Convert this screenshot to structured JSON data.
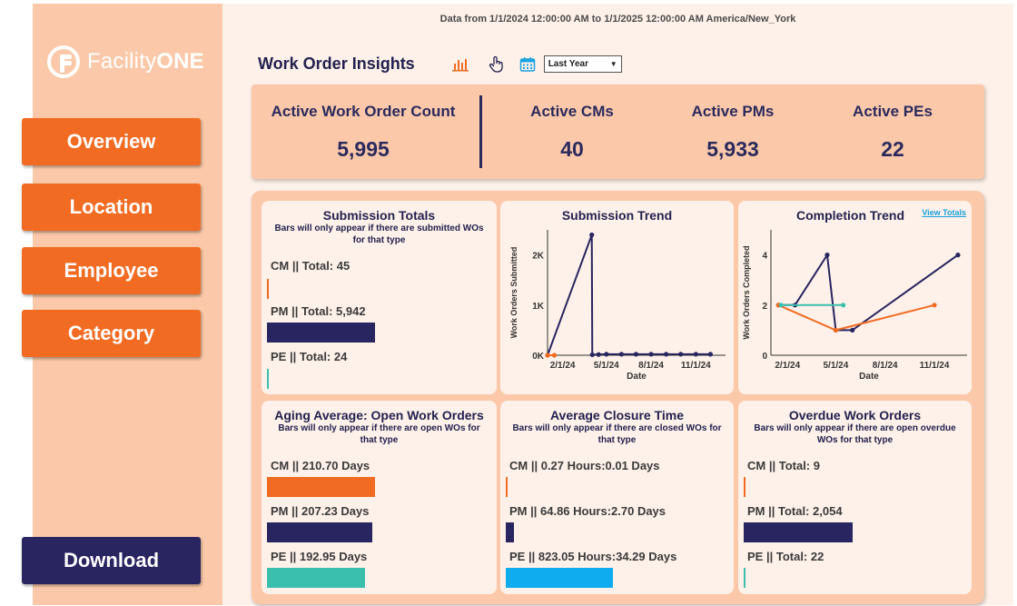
{
  "header": {
    "date_range": "Data from 1/1/2024 12:00:00 AM to 1/1/2025 12:00:00 AM America/New_York",
    "title": "Work Order Insights",
    "period_select": "Last Year"
  },
  "logo": {
    "light": "Facility",
    "bold": "ONE"
  },
  "sidebar": {
    "overview": "Overview",
    "location": "Location",
    "employee": "Employee",
    "category": "Category",
    "download": "Download"
  },
  "kpis": {
    "active_wo": {
      "label": "Active Work Order Count",
      "value": "5,995"
    },
    "active_cms": {
      "label": "Active CMs",
      "value": "40"
    },
    "active_pms": {
      "label": "Active PMs",
      "value": "5,933"
    },
    "active_pes": {
      "label": "Active PEs",
      "value": "22"
    }
  },
  "colors": {
    "cm": "#f26b22",
    "pm": "#282560",
    "pe_teal": "#3bbfad",
    "pe_blue": "#0fadf0",
    "sidebar": "#fbc9a9",
    "button": "#f26b22",
    "download": "#282560"
  },
  "tiles": {
    "submission_totals": {
      "title": "Submission Totals",
      "subtitle": "Bars will only appear if there are submitted WOs for that type",
      "rows": [
        {
          "label": "CM || Total: 45",
          "value": 45
        },
        {
          "label": "PM || Total: 5,942",
          "value": 5942
        },
        {
          "label": "PE || Total: 24",
          "value": 24
        }
      ]
    },
    "aging_average": {
      "title": "Aging Average: Open Work Orders",
      "subtitle": "Bars will only appear if there are open WOs for that type",
      "rows": [
        {
          "label": "CM || 210.70 Days",
          "value": 210.7
        },
        {
          "label": "PM || 207.23 Days",
          "value": 207.23
        },
        {
          "label": "PE || 192.95 Days",
          "value": 192.95
        }
      ]
    },
    "average_closure": {
      "title": "Average Closure Time",
      "subtitle": "Bars will only appear if there are closed WOs for that type",
      "rows": [
        {
          "label": "CM || 0.27 Hours:0.01 Days",
          "value": 0.27
        },
        {
          "label": "PM || 64.86 Hours:2.70 Days",
          "value": 64.86
        },
        {
          "label": "PE || 823.05 Hours:34.29 Days",
          "value": 823.05
        }
      ]
    },
    "overdue": {
      "title": "Overdue Work Orders",
      "subtitle": "Bars will only appear if there are open overdue WOs for that type",
      "rows": [
        {
          "label": "CM || Total: 9",
          "value": 9
        },
        {
          "label": "PM || Total: 2,054",
          "value": 2054
        },
        {
          "label": "PE || Total: 22",
          "value": 22
        }
      ]
    },
    "submission_trend": {
      "title": "Submission Trend"
    },
    "completion_trend": {
      "title": "Completion Trend",
      "link": "View Totals"
    }
  },
  "chart_data": [
    {
      "type": "line",
      "title": "Submission Trend",
      "xlabel": "Date",
      "ylabel": "Work Orders Submitted",
      "x_ticks": [
        "2/1/24",
        "5/1/24",
        "8/1/24",
        "11/1/24"
      ],
      "y_ticks": [
        "0K",
        "1K",
        "2K"
      ],
      "ylim": [
        0,
        2500
      ],
      "series": [
        {
          "color": "#282560",
          "x": [
            "2024-01-01",
            "2024-04-01",
            "2024-04-02",
            "2024-04-15",
            "2024-05-01",
            "2024-06-01",
            "2024-07-01",
            "2024-08-01",
            "2024-09-01",
            "2024-10-01",
            "2024-11-01",
            "2024-12-01"
          ],
          "y": [
            0,
            2400,
            10,
            15,
            20,
            20,
            20,
            20,
            20,
            20,
            20,
            20
          ]
        },
        {
          "color": "#f26b22",
          "x": [
            "2024-01-01",
            "2024-01-15"
          ],
          "y": [
            0,
            0
          ]
        }
      ]
    },
    {
      "type": "line",
      "title": "Completion Trend",
      "xlabel": "Date",
      "ylabel": "Work Orders Completed",
      "x_ticks": [
        "2/1/24",
        "5/1/24",
        "8/1/24",
        "11/1/24"
      ],
      "y_ticks": [
        "0",
        "2",
        "4"
      ],
      "ylim": [
        0,
        5
      ],
      "series": [
        {
          "color": "#282560",
          "x": [
            "2024-01-15",
            "2024-02-15",
            "2024-04-15",
            "2024-05-01",
            "2024-06-01",
            "2024-12-15"
          ],
          "y": [
            2,
            2,
            4,
            1,
            1,
            4
          ]
        },
        {
          "color": "#f26b22",
          "x": [
            "2024-01-15",
            "2024-05-01",
            "2024-11-01"
          ],
          "y": [
            2,
            1,
            2
          ]
        },
        {
          "color": "#3bbfad",
          "x": [
            "2024-01-20",
            "2024-05-15"
          ],
          "y": [
            2,
            2
          ]
        }
      ]
    }
  ]
}
